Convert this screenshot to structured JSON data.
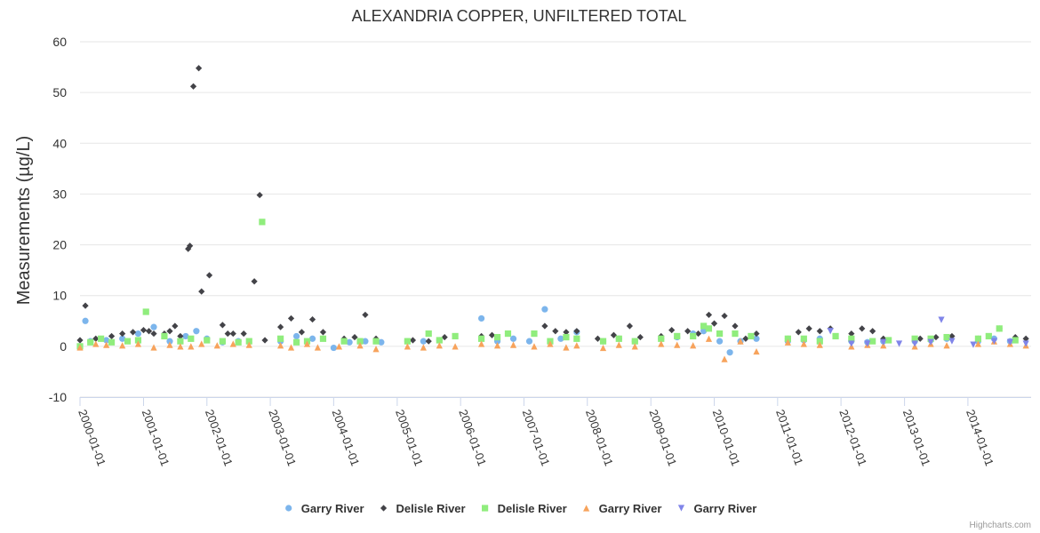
{
  "chart_data": {
    "type": "scatter",
    "title": "ALEXANDRIA COPPER, UNFILTERED TOTAL",
    "ylabel": "Measurements (µg/L)",
    "xlabel": "",
    "ylim": [
      -10,
      60
    ],
    "yticks": [
      -10,
      0,
      10,
      20,
      30,
      40,
      50,
      60
    ],
    "xlim": [
      "2000-01-01",
      "2014-12-31"
    ],
    "xticks": [
      "2000-01-01",
      "2001-01-01",
      "2002-01-01",
      "2003-01-01",
      "2004-01-01",
      "2005-01-01",
      "2006-01-01",
      "2007-01-01",
      "2008-01-01",
      "2009-01-01",
      "2010-01-01",
      "2011-01-01",
      "2012-01-01",
      "2013-01-01",
      "2014-01-01"
    ],
    "grid": true,
    "legend_position": "bottom",
    "credit": "Highcharts.com",
    "series": [
      {
        "name": "Garry River",
        "marker": "circle",
        "color": "#7cb5ec",
        "points": [
          [
            "2000-02-01",
            5.0
          ],
          [
            "2000-03-01",
            1.0
          ],
          [
            "2000-06-01",
            1.2
          ],
          [
            "2000-09-01",
            1.5
          ],
          [
            "2000-12-01",
            2.5
          ],
          [
            "2001-03-01",
            3.8
          ],
          [
            "2001-06-01",
            1.0
          ],
          [
            "2001-09-01",
            2.0
          ],
          [
            "2001-11-01",
            3.0
          ],
          [
            "2002-01-01",
            1.5
          ],
          [
            "2002-04-01",
            0.8
          ],
          [
            "2002-07-01",
            1.0
          ],
          [
            "2003-03-01",
            1.0
          ],
          [
            "2003-06-01",
            2.0
          ],
          [
            "2003-09-01",
            1.5
          ],
          [
            "2004-01-01",
            -0.3
          ],
          [
            "2004-04-01",
            0.8
          ],
          [
            "2004-07-01",
            1.0
          ],
          [
            "2004-10-01",
            0.8
          ],
          [
            "2005-03-01",
            1.0
          ],
          [
            "2005-06-01",
            1.0
          ],
          [
            "2005-09-01",
            1.2
          ],
          [
            "2006-05-01",
            5.5
          ],
          [
            "2006-08-01",
            1.0
          ],
          [
            "2006-11-01",
            1.5
          ],
          [
            "2007-02-01",
            1.0
          ],
          [
            "2007-05-01",
            7.3
          ],
          [
            "2007-08-01",
            1.5
          ],
          [
            "2007-11-01",
            2.8
          ],
          [
            "2008-04-01",
            1.0
          ],
          [
            "2008-07-01",
            1.5
          ],
          [
            "2008-10-01",
            1.0
          ],
          [
            "2009-03-01",
            1.5
          ],
          [
            "2009-06-01",
            1.8
          ],
          [
            "2009-09-01",
            2.5
          ],
          [
            "2009-11-01",
            3.0
          ],
          [
            "2010-02-01",
            1.0
          ],
          [
            "2010-04-01",
            -1.2
          ],
          [
            "2010-06-01",
            1.0
          ],
          [
            "2010-09-01",
            1.5
          ],
          [
            "2011-03-01",
            1.0
          ],
          [
            "2011-06-01",
            1.2
          ],
          [
            "2011-09-01",
            1.5
          ],
          [
            "2012-03-01",
            1.0
          ],
          [
            "2012-06-01",
            0.8
          ],
          [
            "2012-09-01",
            1.0
          ],
          [
            "2013-03-01",
            1.0
          ],
          [
            "2013-06-01",
            1.2
          ],
          [
            "2013-09-01",
            1.5
          ],
          [
            "2014-03-01",
            1.0
          ],
          [
            "2014-06-01",
            1.5
          ],
          [
            "2014-09-01",
            1.0
          ]
        ]
      },
      {
        "name": "Delisle River",
        "marker": "diamond",
        "color": "#434348",
        "points": [
          [
            "2000-01-01",
            1.2
          ],
          [
            "2000-02-01",
            8.0
          ],
          [
            "2000-04-01",
            1.5
          ],
          [
            "2000-07-01",
            2.0
          ],
          [
            "2000-09-01",
            2.5
          ],
          [
            "2000-11-01",
            2.8
          ],
          [
            "2001-01-01",
            3.2
          ],
          [
            "2001-02-01",
            3.0
          ],
          [
            "2001-03-01",
            2.5
          ],
          [
            "2001-05-01",
            2.5
          ],
          [
            "2001-06-01",
            3.0
          ],
          [
            "2001-07-01",
            4.0
          ],
          [
            "2001-08-01",
            2.0
          ],
          [
            "2001-09-15",
            19.2
          ],
          [
            "2001-09-25",
            19.8
          ],
          [
            "2001-10-15",
            51.2
          ],
          [
            "2001-11-15",
            54.8
          ],
          [
            "2001-12-01",
            10.8
          ],
          [
            "2002-01-15",
            14.0
          ],
          [
            "2002-04-01",
            4.2
          ],
          [
            "2002-05-01",
            2.5
          ],
          [
            "2002-06-01",
            2.5
          ],
          [
            "2002-08-01",
            2.5
          ],
          [
            "2002-10-01",
            12.8
          ],
          [
            "2002-11-01",
            29.8
          ],
          [
            "2002-12-01",
            1.2
          ],
          [
            "2003-03-01",
            3.8
          ],
          [
            "2003-05-01",
            5.5
          ],
          [
            "2003-07-01",
            2.8
          ],
          [
            "2003-09-01",
            5.3
          ],
          [
            "2003-11-01",
            2.8
          ],
          [
            "2004-03-01",
            1.5
          ],
          [
            "2004-05-01",
            1.8
          ],
          [
            "2004-07-01",
            6.2
          ],
          [
            "2004-09-01",
            1.5
          ],
          [
            "2005-04-01",
            1.2
          ],
          [
            "2005-07-01",
            1.0
          ],
          [
            "2005-10-01",
            1.8
          ],
          [
            "2006-05-01",
            2.0
          ],
          [
            "2006-07-01",
            2.2
          ],
          [
            "2006-10-01",
            2.5
          ],
          [
            "2007-03-01",
            2.5
          ],
          [
            "2007-05-01",
            4.0
          ],
          [
            "2007-07-01",
            3.0
          ],
          [
            "2007-09-01",
            2.8
          ],
          [
            "2007-11-01",
            3.0
          ],
          [
            "2008-03-01",
            1.5
          ],
          [
            "2008-06-01",
            2.2
          ],
          [
            "2008-09-01",
            4.0
          ],
          [
            "2008-11-01",
            1.8
          ],
          [
            "2009-03-01",
            2.0
          ],
          [
            "2009-05-01",
            3.2
          ],
          [
            "2009-08-01",
            3.0
          ],
          [
            "2009-10-01",
            2.5
          ],
          [
            "2009-12-01",
            6.2
          ],
          [
            "2010-01-01",
            4.5
          ],
          [
            "2010-03-01",
            6.0
          ],
          [
            "2010-05-01",
            4.0
          ],
          [
            "2010-07-01",
            1.5
          ],
          [
            "2010-09-01",
            2.5
          ],
          [
            "2011-03-01",
            1.5
          ],
          [
            "2011-05-01",
            2.8
          ],
          [
            "2011-07-01",
            3.5
          ],
          [
            "2011-09-01",
            3.0
          ],
          [
            "2011-11-01",
            3.5
          ],
          [
            "2012-03-01",
            2.5
          ],
          [
            "2012-05-01",
            3.5
          ],
          [
            "2012-07-01",
            3.0
          ],
          [
            "2012-09-01",
            1.5
          ],
          [
            "2013-04-01",
            1.5
          ],
          [
            "2013-07-01",
            1.8
          ],
          [
            "2013-10-01",
            2.0
          ],
          [
            "2014-03-01",
            1.5
          ],
          [
            "2014-07-01",
            3.5
          ],
          [
            "2014-10-01",
            1.8
          ],
          [
            "2014-12-01",
            1.5
          ]
        ]
      },
      {
        "name": "Delisle River",
        "marker": "square",
        "color": "#90ed7d",
        "points": [
          [
            "2000-01-01",
            0.0
          ],
          [
            "2000-03-01",
            0.8
          ],
          [
            "2000-05-01",
            1.5
          ],
          [
            "2000-07-01",
            0.8
          ],
          [
            "2000-10-01",
            1.0
          ],
          [
            "2000-12-01",
            1.2
          ],
          [
            "2001-01-15",
            6.8
          ],
          [
            "2001-05-01",
            2.0
          ],
          [
            "2001-08-01",
            1.0
          ],
          [
            "2001-10-01",
            1.5
          ],
          [
            "2002-01-01",
            1.2
          ],
          [
            "2002-04-01",
            1.0
          ],
          [
            "2002-07-01",
            0.8
          ],
          [
            "2002-09-01",
            1.0
          ],
          [
            "2002-11-15",
            24.5
          ],
          [
            "2003-03-01",
            1.5
          ],
          [
            "2003-06-01",
            0.8
          ],
          [
            "2003-08-01",
            1.0
          ],
          [
            "2003-11-01",
            1.5
          ],
          [
            "2004-03-01",
            1.0
          ],
          [
            "2004-06-01",
            1.0
          ],
          [
            "2004-09-01",
            1.0
          ],
          [
            "2005-03-01",
            1.0
          ],
          [
            "2005-07-01",
            2.5
          ],
          [
            "2005-09-01",
            1.2
          ],
          [
            "2005-12-01",
            2.0
          ],
          [
            "2006-05-01",
            1.5
          ],
          [
            "2006-08-01",
            1.8
          ],
          [
            "2006-10-01",
            2.5
          ],
          [
            "2007-03-01",
            2.5
          ],
          [
            "2007-06-01",
            1.0
          ],
          [
            "2007-09-01",
            1.8
          ],
          [
            "2007-11-01",
            1.5
          ],
          [
            "2008-04-01",
            1.0
          ],
          [
            "2008-07-01",
            1.5
          ],
          [
            "2008-10-01",
            1.0
          ],
          [
            "2009-03-01",
            1.5
          ],
          [
            "2009-06-01",
            2.0
          ],
          [
            "2009-09-01",
            2.0
          ],
          [
            "2009-11-01",
            4.0
          ],
          [
            "2009-12-01",
            3.5
          ],
          [
            "2010-02-01",
            2.5
          ],
          [
            "2010-05-01",
            2.5
          ],
          [
            "2010-08-01",
            2.0
          ],
          [
            "2011-03-01",
            1.5
          ],
          [
            "2011-06-01",
            1.5
          ],
          [
            "2011-09-01",
            1.0
          ],
          [
            "2011-12-01",
            2.0
          ],
          [
            "2012-03-01",
            1.5
          ],
          [
            "2012-07-01",
            1.0
          ],
          [
            "2012-10-01",
            1.2
          ],
          [
            "2013-03-01",
            1.5
          ],
          [
            "2013-06-01",
            1.5
          ],
          [
            "2013-09-01",
            1.8
          ],
          [
            "2014-03-01",
            1.5
          ],
          [
            "2014-05-01",
            2.0
          ],
          [
            "2014-07-01",
            3.5
          ],
          [
            "2014-10-01",
            1.2
          ]
        ]
      },
      {
        "name": "Garry River",
        "marker": "triangle",
        "color": "#f7a35c",
        "points": [
          [
            "2000-01-01",
            -0.2
          ],
          [
            "2000-04-01",
            0.5
          ],
          [
            "2000-06-01",
            0.3
          ],
          [
            "2000-09-01",
            0.2
          ],
          [
            "2000-12-01",
            0.5
          ],
          [
            "2001-03-01",
            -0.2
          ],
          [
            "2001-06-01",
            0.3
          ],
          [
            "2001-08-01",
            0.0
          ],
          [
            "2001-10-01",
            0.0
          ],
          [
            "2001-12-01",
            0.5
          ],
          [
            "2002-03-01",
            0.2
          ],
          [
            "2002-06-01",
            0.5
          ],
          [
            "2002-09-01",
            0.3
          ],
          [
            "2003-03-01",
            0.2
          ],
          [
            "2003-05-01",
            -0.2
          ],
          [
            "2003-08-01",
            0.5
          ],
          [
            "2003-10-01",
            -0.2
          ],
          [
            "2004-02-01",
            0.0
          ],
          [
            "2004-06-01",
            0.2
          ],
          [
            "2004-09-01",
            -0.5
          ],
          [
            "2005-03-01",
            0.0
          ],
          [
            "2005-06-01",
            -0.2
          ],
          [
            "2005-09-01",
            0.2
          ],
          [
            "2005-12-01",
            0.0
          ],
          [
            "2006-05-01",
            0.5
          ],
          [
            "2006-08-01",
            0.2
          ],
          [
            "2006-11-01",
            0.3
          ],
          [
            "2007-03-01",
            0.0
          ],
          [
            "2007-06-01",
            0.5
          ],
          [
            "2007-09-01",
            -0.2
          ],
          [
            "2007-11-01",
            0.2
          ],
          [
            "2008-04-01",
            -0.3
          ],
          [
            "2008-07-01",
            0.3
          ],
          [
            "2008-10-01",
            0.0
          ],
          [
            "2009-03-01",
            0.5
          ],
          [
            "2009-06-01",
            0.3
          ],
          [
            "2009-09-01",
            0.2
          ],
          [
            "2009-12-01",
            1.5
          ],
          [
            "2010-03-01",
            -2.5
          ],
          [
            "2010-06-01",
            1.0
          ],
          [
            "2010-09-01",
            -1.0
          ],
          [
            "2011-03-01",
            0.8
          ],
          [
            "2011-06-01",
            0.5
          ],
          [
            "2011-09-01",
            0.3
          ],
          [
            "2012-03-01",
            0.0
          ],
          [
            "2012-06-01",
            0.3
          ],
          [
            "2012-09-01",
            0.2
          ],
          [
            "2013-03-01",
            0.0
          ],
          [
            "2013-06-01",
            0.5
          ],
          [
            "2013-09-01",
            0.2
          ],
          [
            "2014-03-01",
            0.5
          ],
          [
            "2014-06-01",
            1.0
          ],
          [
            "2014-09-01",
            0.5
          ],
          [
            "2014-12-01",
            0.2
          ]
        ]
      },
      {
        "name": "Garry River",
        "marker": "triangle-down",
        "color": "#8085e9",
        "points": [
          [
            "2011-11-01",
            3.0
          ],
          [
            "2012-03-01",
            0.5
          ],
          [
            "2012-06-01",
            0.5
          ],
          [
            "2012-09-01",
            0.8
          ],
          [
            "2012-12-01",
            0.5
          ],
          [
            "2013-03-01",
            0.5
          ],
          [
            "2013-06-01",
            0.8
          ],
          [
            "2013-08-01",
            5.2
          ],
          [
            "2013-10-01",
            1.0
          ],
          [
            "2014-02-01",
            0.3
          ],
          [
            "2014-06-01",
            1.0
          ],
          [
            "2014-09-01",
            0.8
          ],
          [
            "2014-12-01",
            0.5
          ]
        ]
      }
    ]
  }
}
